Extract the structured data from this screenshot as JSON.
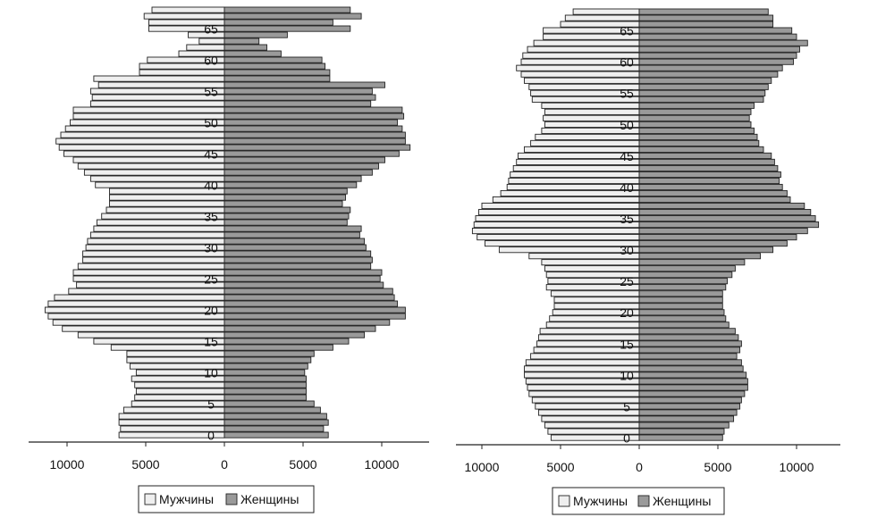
{
  "chart_data": [
    {
      "type": "bar",
      "orientation": "horizontal-pyramid",
      "y_tick_labels": [
        "0",
        "5",
        "10",
        "15",
        "20",
        "25",
        "30",
        "35",
        "40",
        "45",
        "50",
        "55",
        "60",
        "65"
      ],
      "x_tick_labels": [
        "10000",
        "5000",
        "0",
        "5000",
        "10000"
      ],
      "x_range": [
        -12000,
        12000
      ],
      "ages": [
        0,
        1,
        2,
        3,
        4,
        5,
        6,
        7,
        8,
        9,
        10,
        11,
        12,
        13,
        14,
        15,
        16,
        17,
        18,
        19,
        20,
        21,
        22,
        23,
        24,
        25,
        26,
        27,
        28,
        29,
        30,
        31,
        32,
        33,
        34,
        35,
        36,
        37,
        38,
        39,
        40,
        41,
        42,
        43,
        44,
        45,
        46,
        47,
        48,
        49,
        50,
        51,
        52,
        53,
        54,
        55,
        56,
        57,
        58,
        59,
        60,
        61,
        62,
        63,
        64,
        65,
        66,
        67,
        68
      ],
      "series": [
        {
          "name": "Мужчины",
          "values": [
            6700,
            6600,
            6700,
            6700,
            6400,
            5900,
            5700,
            5600,
            5700,
            5900,
            5600,
            6000,
            6200,
            6200,
            7200,
            8300,
            9300,
            10300,
            10900,
            11200,
            11400,
            11200,
            10800,
            9900,
            9400,
            9600,
            9600,
            9300,
            9000,
            9000,
            8800,
            8700,
            8500,
            8300,
            8100,
            7800,
            7500,
            7300,
            7300,
            7300,
            8200,
            8500,
            8900,
            9300,
            9600,
            10200,
            10500,
            10700,
            10400,
            10100,
            9800,
            9600,
            9600,
            8500,
            8400,
            8500,
            8000,
            8300,
            5400,
            5400,
            4900,
            2900,
            2400,
            1600,
            2300,
            4800,
            4800,
            5100,
            4600
          ]
        },
        {
          "name": "Женщины",
          "values": [
            6600,
            6300,
            6600,
            6500,
            6100,
            5700,
            5200,
            5200,
            5200,
            5200,
            5100,
            5300,
            5500,
            5700,
            6900,
            7900,
            8900,
            9600,
            10500,
            11500,
            11500,
            11000,
            10800,
            10700,
            10100,
            9900,
            10000,
            9300,
            9400,
            9300,
            9000,
            8900,
            8600,
            8700,
            7800,
            7900,
            8000,
            7500,
            7700,
            7800,
            8400,
            8700,
            9400,
            9800,
            10200,
            11100,
            11800,
            11500,
            11500,
            11300,
            11000,
            11400,
            11300,
            9300,
            9600,
            9400,
            10200,
            6700,
            6700,
            6400,
            6200,
            3600,
            2700,
            2200,
            4000,
            8000,
            6900,
            8700,
            8000
          ]
        }
      ],
      "legend": {
        "position": "bottom-center",
        "labels": [
          "Мужчины",
          "Женщины"
        ]
      }
    },
    {
      "type": "bar",
      "orientation": "horizontal-pyramid",
      "y_tick_labels": [
        "0",
        "5",
        "10",
        "15",
        "20",
        "25",
        "30",
        "35",
        "40",
        "45",
        "50",
        "55",
        "60",
        "65"
      ],
      "x_tick_labels": [
        "10000",
        "5000",
        "0",
        "5000",
        "10000"
      ],
      "x_range": [
        -11000,
        12800
      ],
      "ages": [
        0,
        1,
        2,
        3,
        4,
        5,
        6,
        7,
        8,
        9,
        10,
        11,
        12,
        13,
        14,
        15,
        16,
        17,
        18,
        19,
        20,
        21,
        22,
        23,
        24,
        25,
        26,
        27,
        28,
        29,
        30,
        31,
        32,
        33,
        34,
        35,
        36,
        37,
        38,
        39,
        40,
        41,
        42,
        43,
        44,
        45,
        46,
        47,
        48,
        49,
        50,
        51,
        52,
        53,
        54,
        55,
        56,
        57,
        58,
        59,
        60,
        61,
        62,
        63,
        64,
        65,
        66,
        67,
        68
      ],
      "series": [
        {
          "name": "Мужчины",
          "values": [
            5600,
            5800,
            6000,
            6200,
            6400,
            6600,
            6800,
            7000,
            7100,
            7200,
            7300,
            7300,
            7200,
            6900,
            6700,
            6500,
            6400,
            6300,
            5900,
            5700,
            5500,
            5400,
            5400,
            5600,
            5900,
            5800,
            5900,
            6000,
            6200,
            7000,
            8900,
            9800,
            10300,
            10600,
            10500,
            10400,
            10200,
            10000,
            9300,
            8800,
            8400,
            8300,
            8200,
            8000,
            7800,
            7700,
            7300,
            6900,
            6600,
            6200,
            6000,
            6100,
            6000,
            6200,
            6800,
            6900,
            7000,
            7300,
            7500,
            7800,
            7500,
            7400,
            7100,
            6700,
            6100,
            6100,
            5000,
            4700,
            4200
          ]
        },
        {
          "name": "Женщины",
          "values": [
            5300,
            5400,
            5700,
            6000,
            6200,
            6400,
            6500,
            6700,
            6900,
            6900,
            6800,
            6600,
            6500,
            6200,
            6400,
            6500,
            6300,
            6100,
            5700,
            5500,
            5400,
            5300,
            5300,
            5300,
            5500,
            5600,
            5900,
            6100,
            6700,
            7700,
            8500,
            9400,
            10000,
            10700,
            11400,
            11200,
            10900,
            10500,
            9600,
            9400,
            9100,
            8900,
            9000,
            8800,
            8600,
            8400,
            7900,
            7600,
            7500,
            7300,
            7100,
            7000,
            7100,
            7300,
            7900,
            8000,
            8200,
            8400,
            8800,
            9100,
            9800,
            10000,
            10200,
            10700,
            10000,
            9700,
            8500,
            8500,
            8200
          ]
        }
      ],
      "legend": {
        "position": "bottom-center",
        "labels": [
          "Мужчины",
          "Женщины"
        ]
      }
    }
  ],
  "legend_labels": {
    "male": "Мужчины",
    "female": "Женщины"
  }
}
